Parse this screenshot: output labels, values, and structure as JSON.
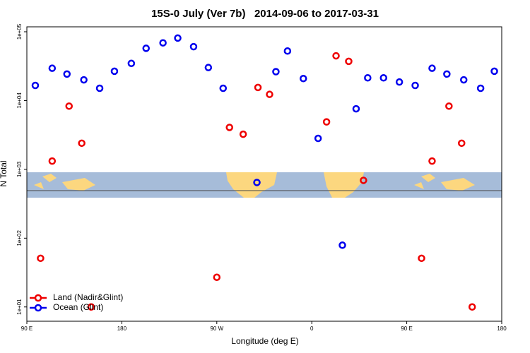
{
  "chart_data": {
    "type": "scatter",
    "title": "15S-0 July (Ver 7b)   2014-09-06 to 2017-03-31",
    "x_label": "Longitude (deg E)",
    "y_label": "N Total",
    "log_y": true,
    "xlim": [
      90,
      540
    ],
    "xticks": [
      {
        "value": 90,
        "label": "90 E"
      },
      {
        "value": 180,
        "label": "180"
      },
      {
        "value": 270,
        "label": "90 W"
      },
      {
        "value": 360,
        "label": "0"
      },
      {
        "value": 450,
        "label": "90 E"
      },
      {
        "value": 540,
        "label": "180"
      }
    ],
    "ylim": [
      6.2,
      118000
    ],
    "yticks": [
      {
        "value": 10,
        "label": "1e+01"
      },
      {
        "value": 100,
        "label": "1e+02"
      },
      {
        "value": 1000,
        "label": "1e+03"
      },
      {
        "value": 10000,
        "label": "1e+04"
      },
      {
        "value": 100000,
        "label": "1e+05"
      }
    ],
    "legend": "bottom-left",
    "series": [
      {
        "name": "Land (Nadir&Glint)",
        "color": "#ee0000",
        "x": [
          103,
          114,
          130,
          142,
          151,
          270,
          282,
          295,
          309,
          320,
          374,
          383,
          395,
          409,
          464,
          474,
          490,
          502,
          512
        ],
        "values": [
          51,
          1320,
          8300,
          2400,
          10,
          27,
          4070,
          3240,
          15500,
          12300,
          4900,
          44700,
          37200,
          692,
          51,
          1320,
          8300,
          2400,
          10
        ]
      },
      {
        "name": "Ocean (Glint)",
        "color": "#0000ee",
        "x": [
          98,
          114,
          128,
          144,
          159,
          173,
          189,
          203,
          219,
          233,
          248,
          262,
          276,
          308,
          326,
          337,
          352,
          366,
          389,
          402,
          413,
          428,
          443,
          458,
          474,
          488,
          504,
          520,
          533
        ],
        "values": [
          16600,
          29500,
          24300,
          20000,
          15100,
          26700,
          34700,
          57500,
          69000,
          81000,
          60700,
          30200,
          15100,
          645,
          26300,
          52500,
          20900,
          2820,
          79,
          7590,
          21400,
          21400,
          18600,
          16600,
          29500,
          24300,
          20000,
          15100,
          26700
        ]
      }
    ]
  }
}
